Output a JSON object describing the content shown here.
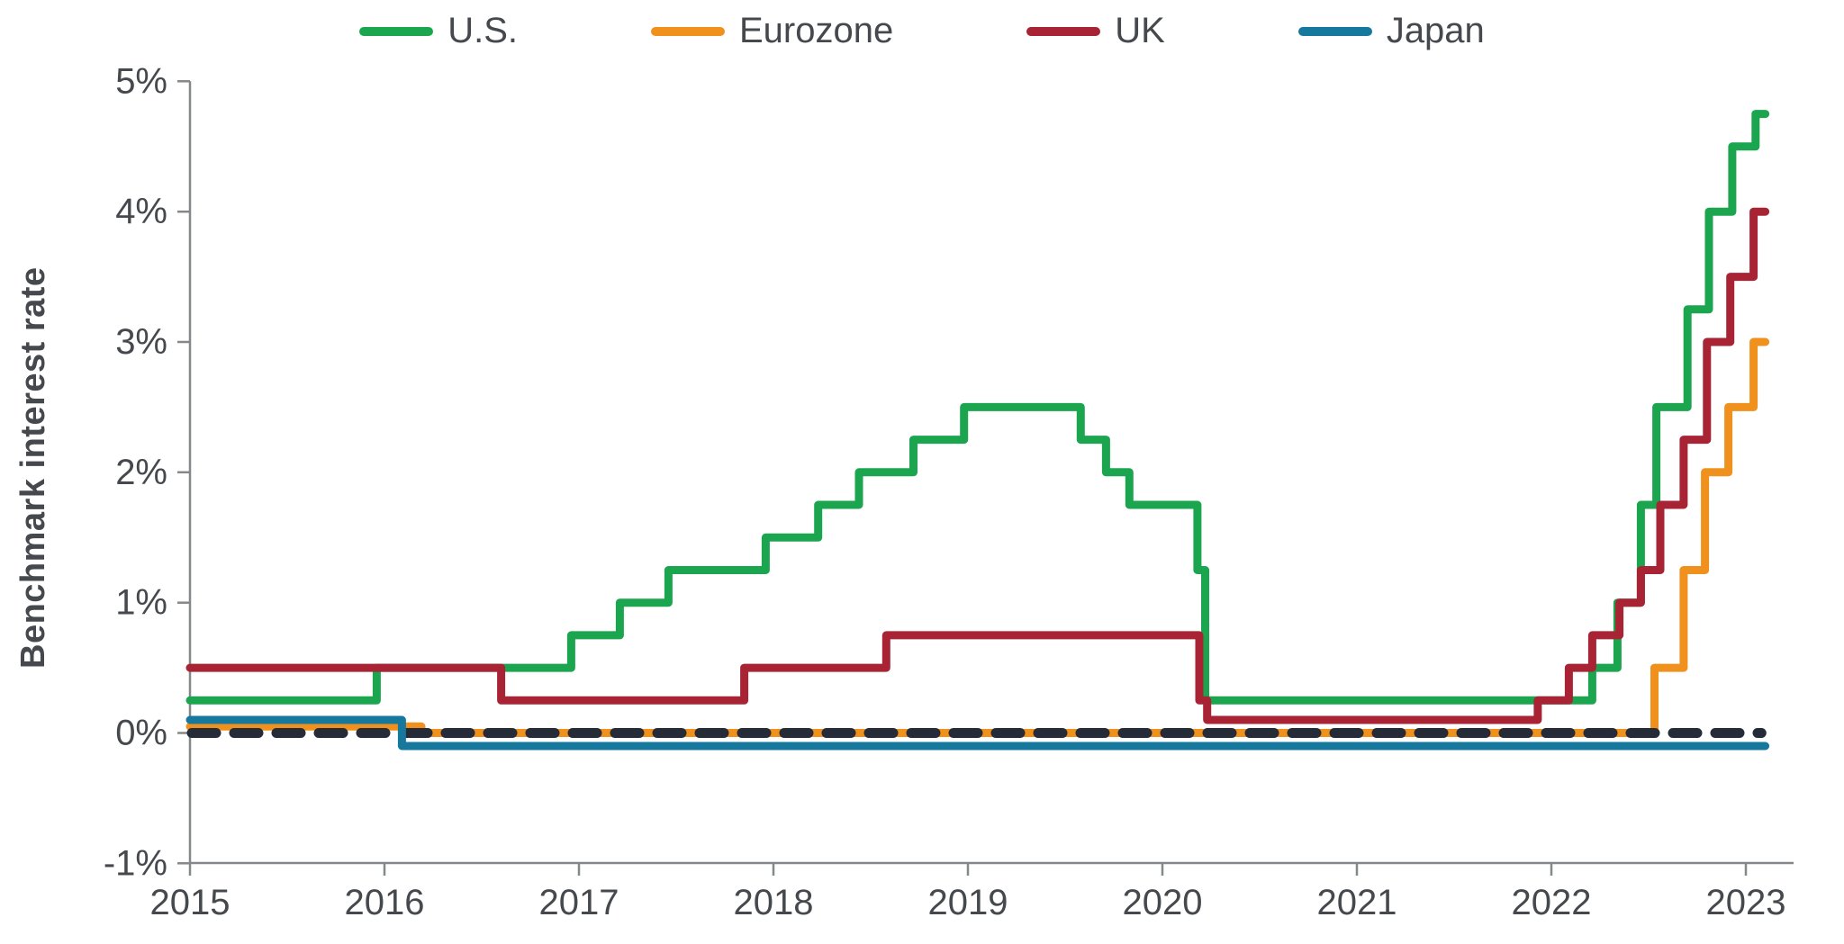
{
  "legend": [
    {
      "label": "U.S.",
      "color": "#1ba54f"
    },
    {
      "label": "Eurozone",
      "color": "#f0901d"
    },
    {
      "label": "UK",
      "color": "#a82334"
    },
    {
      "label": "Japan",
      "color": "#17789e"
    }
  ],
  "chart_data": {
    "type": "line",
    "line_style": "step",
    "title": "",
    "xlabel": "",
    "ylabel": "Benchmark interest rate",
    "xlim": [
      2015,
      2023.25
    ],
    "ylim": [
      -1,
      5
    ],
    "grid": false,
    "legend_position": "top",
    "axis_color": "#85888b",
    "text_color": "#45494d",
    "y_ticks": [
      {
        "value": 5,
        "label": "5%"
      },
      {
        "value": 4,
        "label": "4%"
      },
      {
        "value": 3,
        "label": "3%"
      },
      {
        "value": 2,
        "label": "2%"
      },
      {
        "value": 1,
        "label": "1%"
      },
      {
        "value": 0,
        "label": "0%"
      },
      {
        "value": -1,
        "label": "-1%"
      }
    ],
    "x_ticks": [
      {
        "value": 2015,
        "label": "2015"
      },
      {
        "value": 2016,
        "label": "2016"
      },
      {
        "value": 2017,
        "label": "2017"
      },
      {
        "value": 2018,
        "label": "2018"
      },
      {
        "value": 2019,
        "label": "2019"
      },
      {
        "value": 2020,
        "label": "2020"
      },
      {
        "value": 2021,
        "label": "2021"
      },
      {
        "value": 2022,
        "label": "2022"
      },
      {
        "value": 2023,
        "label": "2023"
      }
    ],
    "zero_line": {
      "value": 0,
      "style": "dashed",
      "color": "#262b38",
      "end": 2023.08
    },
    "series_end": 2023.1,
    "series": [
      {
        "name": "Eurozone",
        "color": "#f0901d",
        "unit": "percent",
        "points": [
          [
            2015.0,
            0.05
          ],
          [
            2016.19,
            0.0
          ],
          [
            2022.53,
            0.5
          ],
          [
            2022.68,
            1.25
          ],
          [
            2022.79,
            2.0
          ],
          [
            2022.91,
            2.5
          ],
          [
            2023.04,
            3.0
          ]
        ]
      },
      {
        "name": "Japan",
        "color": "#17789e",
        "unit": "percent",
        "points": [
          [
            2015.0,
            0.1
          ],
          [
            2016.09,
            -0.1
          ]
        ]
      },
      {
        "name": "U.S.",
        "color": "#1ba54f",
        "unit": "percent",
        "points": [
          [
            2015.0,
            0.25
          ],
          [
            2015.96,
            0.5
          ],
          [
            2016.96,
            0.75
          ],
          [
            2017.21,
            1.0
          ],
          [
            2017.46,
            1.25
          ],
          [
            2017.96,
            1.5
          ],
          [
            2018.23,
            1.75
          ],
          [
            2018.44,
            2.0
          ],
          [
            2018.72,
            2.25
          ],
          [
            2018.98,
            2.5
          ],
          [
            2019.58,
            2.25
          ],
          [
            2019.71,
            2.0
          ],
          [
            2019.83,
            1.75
          ],
          [
            2020.18,
            1.25
          ],
          [
            2020.22,
            0.25
          ],
          [
            2022.21,
            0.5
          ],
          [
            2022.34,
            1.0
          ],
          [
            2022.46,
            1.75
          ],
          [
            2022.54,
            2.5
          ],
          [
            2022.7,
            3.25
          ],
          [
            2022.81,
            4.0
          ],
          [
            2022.93,
            4.5
          ],
          [
            2023.05,
            4.75
          ]
        ]
      },
      {
        "name": "UK",
        "color": "#a82334",
        "unit": "percent",
        "points": [
          [
            2015.0,
            0.5
          ],
          [
            2016.6,
            0.25
          ],
          [
            2017.85,
            0.5
          ],
          [
            2018.58,
            0.75
          ],
          [
            2020.19,
            0.25
          ],
          [
            2020.23,
            0.1
          ],
          [
            2021.93,
            0.25
          ],
          [
            2022.09,
            0.5
          ],
          [
            2022.21,
            0.75
          ],
          [
            2022.35,
            1.0
          ],
          [
            2022.46,
            1.25
          ],
          [
            2022.56,
            1.75
          ],
          [
            2022.68,
            2.25
          ],
          [
            2022.8,
            3.0
          ],
          [
            2022.92,
            3.5
          ],
          [
            2023.04,
            4.0
          ]
        ]
      }
    ]
  }
}
